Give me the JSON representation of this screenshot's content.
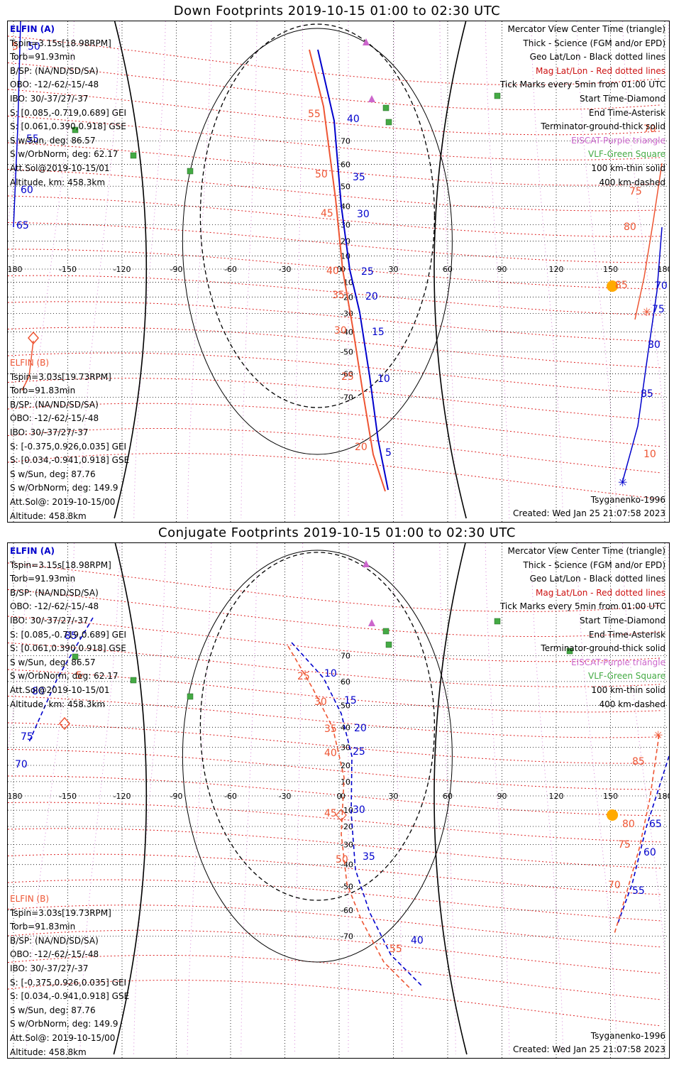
{
  "panels": [
    {
      "title": "Down Footprints 2019-10-15 01:00 to 02:30 UTC",
      "elfin_a": {
        "name": "ELFIN (A)",
        "lines": [
          "Tspin=3.15s[18.98RPM]",
          "Torb=91.93min",
          "B/SP: (NA/ND/SD/SA)",
          "OBO: -12/-62/-15/-48",
          "IBO: 30/-37/27/-37",
          "S: [0.085,-0.719,0.689] GEI",
          "S: [0.061,0.390,0.918] GSE",
          "S w/Sun, deg: 86.57",
          "S w/OrbNorm, deg: 62.17",
          "Att.Sol@2019-10-15/01",
          "Altitude, km: 458.3km"
        ]
      },
      "elfin_b": {
        "name": "ELFIN (B)",
        "lines": [
          "Tspin=3.03s[19.73RPM]",
          "Torb=91.83min",
          "B/SP: (NA/ND/SD/SA)",
          "OBO: -12/-62/-15/-48",
          "IBO: 30/-37/27/-37",
          "S: [-0.375,0.926,0.035] GEI",
          "S: [0.034,-0.941,0.918] GSE",
          "S w/Sun, deg: 87.76",
          "S w/OrbNorm, deg: 149.9",
          "Att.Sol@: 2019-10-15/00",
          "Altitude: 458.8km"
        ]
      },
      "legend": [
        "Mercator View Center Time (triangle)",
        "Thick - Science (FGM and/or EPD)",
        "Geo Lat/Lon - Black dotted lines",
        "Mag Lat/Lon - Red dotted lines",
        "Tick Marks every 5min from 01:00 UTC",
        "Start Time-Diamond",
        "End Time-Asterisk",
        "Terminator-ground-thick solid",
        "EISCAT-Purple triangle",
        "VLF-Green Square",
        "100 km-thin solid",
        "400 km-dashed"
      ],
      "model": "Tsyganenko-1996",
      "created": "Created: Wed Jan 25 21:07:58 2023",
      "lon_ticks": [
        "-180",
        "-150",
        "-120",
        "-90",
        "-60",
        "-30",
        "0",
        "30",
        "60",
        "90",
        "120",
        "150",
        "180"
      ],
      "lat_ticks": [
        "70",
        "60",
        "50",
        "40",
        "30",
        "20",
        "10",
        "0",
        "-10",
        "-20",
        "-30",
        "-40",
        "-50",
        "-60",
        "-70"
      ],
      "track_a_labels": [
        "40",
        "35",
        "30",
        "25",
        "20",
        "15",
        "10",
        "5",
        "50",
        "55",
        "60",
        "65",
        "70",
        "75",
        "80",
        "85"
      ],
      "track_b_labels": [
        "55",
        "50",
        "45",
        "40",
        "35",
        "30",
        "25",
        "20",
        "5",
        "70",
        "75",
        "80",
        "85",
        "10"
      ]
    },
    {
      "title": "Conjugate Footprints 2019-10-15 01:00 to 02:30 UTC",
      "elfin_a": {
        "name": "ELFIN (A)",
        "lines": [
          "Tspin=3.15s[18.98RPM]",
          "Torb=91.93min",
          "B/SP: (NA/ND/SD/SA)",
          "OBO: -12/-62/-15/-48",
          "IBO: 30/-37/27/-37",
          "S: [0.085,-0.719,0.689] GEI",
          "S: [0.061,0.390,0.918] GSE",
          "S w/Sun, deg: 86.57",
          "S w/OrbNorm, deg: 62.17",
          "Att.Sol@2019-10-15/01",
          "Altitude, km: 458.3km"
        ]
      },
      "elfin_b": {
        "name": "ELFIN (B)",
        "lines": [
          "Tspin=3.03s[19.73RPM]",
          "Torb=91.83min",
          "B/SP: (NA/ND/SD/SA)",
          "OBO: -12/-62/-15/-48",
          "IBO: 30/-37/27/-37",
          "S: [-0.375,0.926,0.035] GEI",
          "S: [0.034,-0.941,0.918] GSE",
          "S w/Sun, deg: 87.76",
          "S w/OrbNorm, deg: 149.9",
          "Att.Sol@: 2019-10-15/00",
          "Altitude: 458.8km"
        ]
      },
      "legend": [
        "Mercator View Center Time (triangle)",
        "Thick - Science (FGM and/or EPD)",
        "Geo Lat/Lon - Black dotted lines",
        "Mag Lat/Lon - Red dotted lines",
        "Tick Marks every 5min from 01:00 UTC",
        "Start Time-Diamond",
        "End Time-Asterisk",
        "Terminator-ground-thick solid",
        "EISCAT-Purple triangle",
        "VLF-Green Square",
        "100 km-thin solid",
        "400 km-dashed"
      ],
      "model": "Tsyganenko-1996",
      "created": "Created: Wed Jan 25 21:07:58 2023",
      "lon_ticks": [
        "-180",
        "-150",
        "-120",
        "-90",
        "-60",
        "-30",
        "0",
        "30",
        "60",
        "90",
        "120",
        "150",
        "180"
      ],
      "lat_ticks": [
        "70",
        "60",
        "50",
        "40",
        "30",
        "20",
        "10",
        "0",
        "-10",
        "-20",
        "-30",
        "-40",
        "-50",
        "-60",
        "-70"
      ],
      "track_a_labels": [
        "10",
        "15",
        "20",
        "25",
        "30",
        "35",
        "40",
        "85",
        "80",
        "75",
        "70",
        "65",
        "60",
        "55"
      ],
      "track_b_labels": [
        "25",
        "30",
        "35",
        "40",
        "45",
        "50",
        "55",
        "5",
        "85",
        "80",
        "75",
        "70"
      ]
    }
  ],
  "colors": {
    "elfin_a": "#0000cc",
    "elfin_b": "#ee5533",
    "mag_grid": "#dd2222",
    "geo_grid": "#000000",
    "eiscat": "#cc66cc",
    "vlf": "#44aa44",
    "sun": "#ffaa00"
  }
}
